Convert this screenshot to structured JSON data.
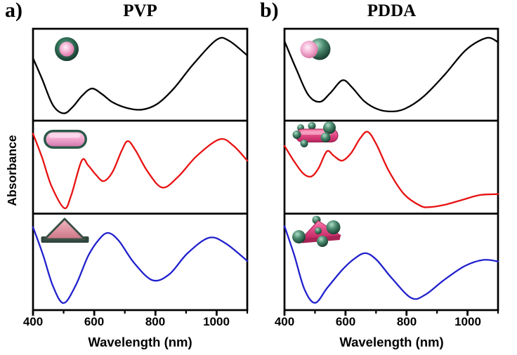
{
  "figure": {
    "panel_a_label": "a)",
    "panel_b_label": "b)",
    "panel_a_title": "PVP",
    "panel_b_title": "PDDA",
    "xlabel": "Wavelength (nm)",
    "ylabel": "Absorbance"
  },
  "colors": {
    "spectrum_black": "#000000",
    "spectrum_red": "#e81212",
    "spectrum_blue": "#2121cd",
    "frame": "#000000",
    "particle_pink": "#f2a8d0",
    "particle_crimson": "#d94077",
    "particle_green": "#2e6b54"
  },
  "chart_data": {
    "type": "line",
    "xlabel": "Wavelength (nm)",
    "ylabel": "Absorbance",
    "x_range": [
      400,
      1100
    ],
    "x_major_ticks": [
      400,
      600,
      800,
      1000
    ],
    "x_minor_ticks": [
      500,
      700,
      900,
      1100
    ],
    "y_axis": "arbitrary units (no tick labels); values below are relative absorbance 0-1 per panel",
    "panel_columns": [
      "PVP",
      "PDDA"
    ],
    "spectra": [
      {
        "id": "pvp-nanosphere",
        "panel": "a",
        "row": 0,
        "coating": "PVP",
        "particle": "core-shell nanosphere",
        "color": "#000000",
        "points": [
          [
            400,
            0.68
          ],
          [
            430,
            0.45
          ],
          [
            465,
            0.17
          ],
          [
            500,
            0.08
          ],
          [
            530,
            0.15
          ],
          [
            560,
            0.27
          ],
          [
            592,
            0.35
          ],
          [
            625,
            0.29
          ],
          [
            660,
            0.2
          ],
          [
            705,
            0.14
          ],
          [
            755,
            0.12
          ],
          [
            805,
            0.18
          ],
          [
            860,
            0.35
          ],
          [
            925,
            0.62
          ],
          [
            1000,
            0.88
          ],
          [
            1040,
            0.87
          ],
          [
            1100,
            0.71
          ]
        ]
      },
      {
        "id": "pvp-nanorod",
        "panel": "a",
        "row": 1,
        "coating": "PVP",
        "particle": "core-shell nanorod",
        "color": "#e81212",
        "points": [
          [
            400,
            0.86
          ],
          [
            430,
            0.6
          ],
          [
            460,
            0.3
          ],
          [
            502,
            0.06
          ],
          [
            525,
            0.2
          ],
          [
            559,
            0.57
          ],
          [
            580,
            0.52
          ],
          [
            605,
            0.42
          ],
          [
            631,
            0.35
          ],
          [
            660,
            0.45
          ],
          [
            690,
            0.68
          ],
          [
            710,
            0.78
          ],
          [
            735,
            0.68
          ],
          [
            775,
            0.45
          ],
          [
            823,
            0.28
          ],
          [
            875,
            0.4
          ],
          [
            935,
            0.62
          ],
          [
            1010,
            0.8
          ],
          [
            1055,
            0.73
          ],
          [
            1100,
            0.57
          ]
        ]
      },
      {
        "id": "pvp-nanoprism",
        "panel": "a",
        "row": 2,
        "coating": "PVP",
        "particle": "core-shell nanoprism",
        "color": "#2121cd",
        "points": [
          [
            400,
            0.86
          ],
          [
            432,
            0.58
          ],
          [
            465,
            0.25
          ],
          [
            500,
            0.073
          ],
          [
            540,
            0.26
          ],
          [
            580,
            0.56
          ],
          [
            615,
            0.73
          ],
          [
            645,
            0.8
          ],
          [
            680,
            0.72
          ],
          [
            730,
            0.49
          ],
          [
            790,
            0.31
          ],
          [
            845,
            0.37
          ],
          [
            905,
            0.59
          ],
          [
            975,
            0.75
          ],
          [
            1030,
            0.69
          ],
          [
            1100,
            0.51
          ]
        ]
      },
      {
        "id": "pdda-nanosphere",
        "panel": "b",
        "row": 0,
        "coating": "PDDA",
        "particle": "nanosphere with satellite sphere",
        "color": "#000000",
        "points": [
          [
            400,
            0.865
          ],
          [
            440,
            0.55
          ],
          [
            478,
            0.28
          ],
          [
            516,
            0.205
          ],
          [
            550,
            0.3
          ],
          [
            590,
            0.44
          ],
          [
            622,
            0.36
          ],
          [
            662,
            0.21
          ],
          [
            705,
            0.125
          ],
          [
            748,
            0.1
          ],
          [
            795,
            0.13
          ],
          [
            855,
            0.26
          ],
          [
            925,
            0.5
          ],
          [
            995,
            0.77
          ],
          [
            1062,
            0.9
          ],
          [
            1100,
            0.855
          ]
        ]
      },
      {
        "id": "pdda-nanorod",
        "panel": "b",
        "row": 1,
        "coating": "PDDA",
        "particle": "nanorod with satellite spheres",
        "color": "#e81212",
        "points": [
          [
            400,
            0.73
          ],
          [
            432,
            0.56
          ],
          [
            462,
            0.43
          ],
          [
            488,
            0.4
          ],
          [
            512,
            0.49
          ],
          [
            539,
            0.67
          ],
          [
            562,
            0.62
          ],
          [
            589,
            0.57
          ],
          [
            618,
            0.65
          ],
          [
            648,
            0.81
          ],
          [
            673,
            0.88
          ],
          [
            702,
            0.74
          ],
          [
            742,
            0.46
          ],
          [
            792,
            0.21
          ],
          [
            845,
            0.085
          ],
          [
            875,
            0.07
          ],
          [
            925,
            0.095
          ],
          [
            985,
            0.15
          ],
          [
            1040,
            0.2
          ],
          [
            1100,
            0.21
          ]
        ]
      },
      {
        "id": "pdda-nanoprism",
        "panel": "b",
        "row": 2,
        "coating": "PDDA",
        "particle": "nanoprism with satellite spheres",
        "color": "#2121cd",
        "points": [
          [
            400,
            0.87
          ],
          [
            432,
            0.57
          ],
          [
            465,
            0.22
          ],
          [
            500,
            0.075
          ],
          [
            540,
            0.23
          ],
          [
            590,
            0.42
          ],
          [
            632,
            0.54
          ],
          [
            666,
            0.59
          ],
          [
            702,
            0.52
          ],
          [
            752,
            0.33
          ],
          [
            816,
            0.125
          ],
          [
            862,
            0.16
          ],
          [
            922,
            0.31
          ],
          [
            990,
            0.455
          ],
          [
            1051,
            0.52
          ],
          [
            1100,
            0.505
          ]
        ]
      }
    ]
  }
}
